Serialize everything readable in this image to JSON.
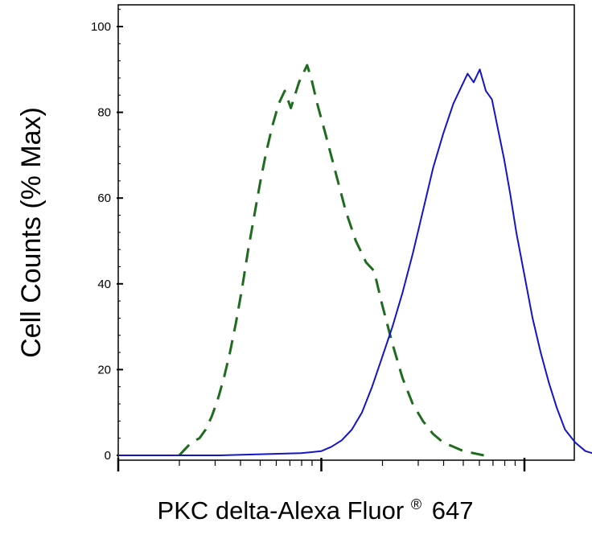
{
  "chart_data": {
    "type": "line",
    "title": "",
    "xlabel": "PKC delta-Alexa Fluor",
    "xlabel_mark": "®",
    "xlabel_suffix": "647",
    "ylabel": "Cell Counts (% Max)",
    "x_scale": "log",
    "ylim": [
      0,
      105
    ],
    "yticks": [
      0,
      20,
      40,
      60,
      80,
      100
    ],
    "ytick_labels": [
      "0",
      "20",
      "40",
      "60",
      "80",
      "100"
    ],
    "grid": false,
    "legend": "none",
    "series": [
      {
        "style": "dashed",
        "color": "#1f6b1f",
        "points": [
          [
            0.3,
            0
          ],
          [
            0.32,
            1
          ],
          [
            0.34,
            2
          ],
          [
            0.36,
            3
          ],
          [
            0.38,
            3.5
          ],
          [
            0.4,
            4
          ],
          [
            0.43,
            6
          ],
          [
            0.46,
            9
          ],
          [
            0.49,
            13
          ],
          [
            0.52,
            18
          ],
          [
            0.55,
            24
          ],
          [
            0.58,
            31
          ],
          [
            0.61,
            39
          ],
          [
            0.64,
            48
          ],
          [
            0.67,
            56
          ],
          [
            0.7,
            64
          ],
          [
            0.73,
            71
          ],
          [
            0.76,
            77
          ],
          [
            0.79,
            82
          ],
          [
            0.82,
            85
          ],
          [
            0.85,
            81
          ],
          [
            0.87,
            84
          ],
          [
            0.89,
            87
          ],
          [
            0.91,
            89
          ],
          [
            0.93,
            91
          ],
          [
            0.95,
            88
          ],
          [
            0.98,
            82
          ],
          [
            1.02,
            75
          ],
          [
            1.07,
            66
          ],
          [
            1.12,
            57
          ],
          [
            1.17,
            50
          ],
          [
            1.22,
            45
          ],
          [
            1.26,
            43
          ],
          [
            1.3,
            35
          ],
          [
            1.35,
            26
          ],
          [
            1.4,
            18
          ],
          [
            1.45,
            12
          ],
          [
            1.5,
            8
          ],
          [
            1.55,
            5
          ],
          [
            1.6,
            3
          ],
          [
            1.65,
            2
          ],
          [
            1.7,
            1
          ],
          [
            1.75,
            0.5
          ],
          [
            1.8,
            0
          ]
        ]
      },
      {
        "style": "solid",
        "color": "#1414c8",
        "points": [
          [
            0,
            0
          ],
          [
            0.5,
            0
          ],
          [
            0.9,
            0.5
          ],
          [
            1.0,
            1
          ],
          [
            1.05,
            2
          ],
          [
            1.1,
            3.5
          ],
          [
            1.15,
            6
          ],
          [
            1.2,
            10
          ],
          [
            1.25,
            16
          ],
          [
            1.3,
            23
          ],
          [
            1.35,
            30
          ],
          [
            1.4,
            38
          ],
          [
            1.45,
            47
          ],
          [
            1.5,
            57
          ],
          [
            1.55,
            67
          ],
          [
            1.6,
            75
          ],
          [
            1.65,
            82
          ],
          [
            1.69,
            86
          ],
          [
            1.72,
            89
          ],
          [
            1.75,
            87
          ],
          [
            1.78,
            90
          ],
          [
            1.81,
            85
          ],
          [
            1.84,
            83
          ],
          [
            1.87,
            76
          ],
          [
            1.9,
            69
          ],
          [
            1.93,
            61
          ],
          [
            1.96,
            52
          ],
          [
            2.0,
            42
          ],
          [
            2.04,
            32
          ],
          [
            2.08,
            24
          ],
          [
            2.12,
            17
          ],
          [
            2.16,
            11
          ],
          [
            2.2,
            6
          ],
          [
            2.25,
            3
          ],
          [
            2.3,
            1
          ],
          [
            2.35,
            0.3
          ],
          [
            2.5,
            0
          ],
          [
            2.7,
            0
          ]
        ]
      }
    ]
  }
}
